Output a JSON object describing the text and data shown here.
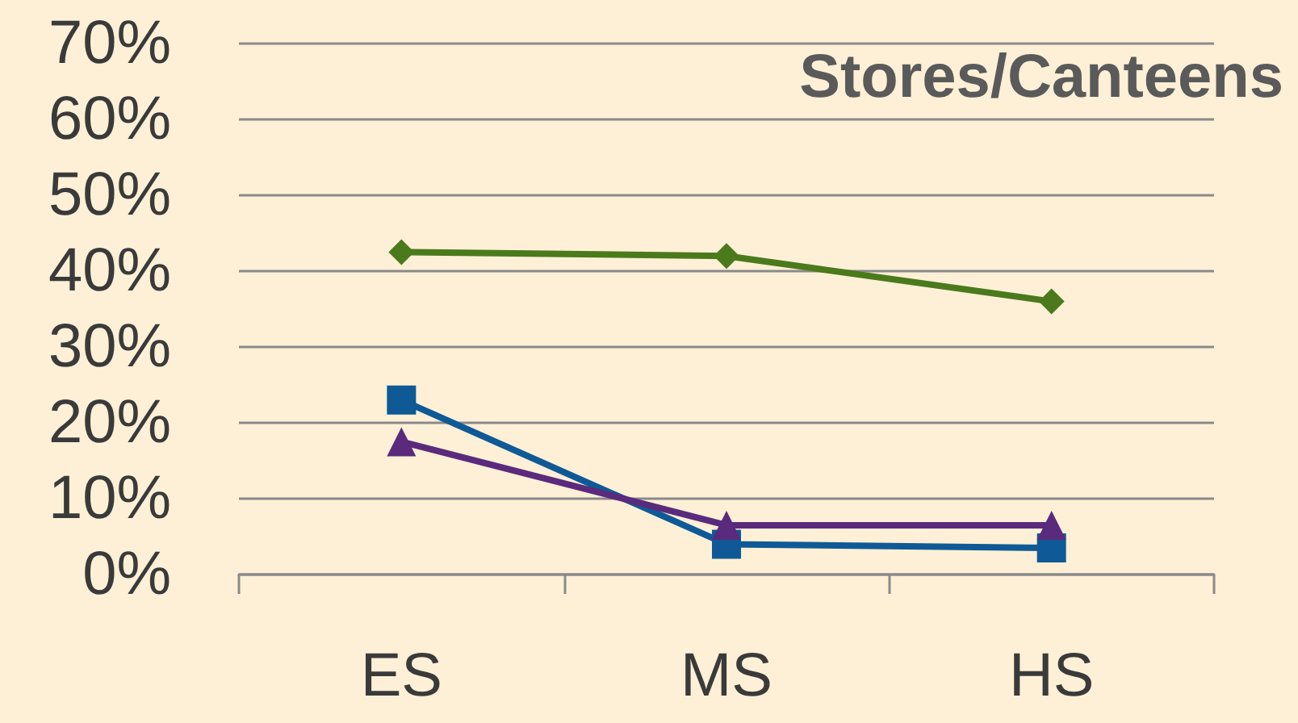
{
  "chart_data": {
    "type": "line",
    "title": "Stores/Canteens",
    "categories": [
      "ES",
      "MS",
      "HS"
    ],
    "series": [
      {
        "color": "#4a7a1c",
        "marker": "diamond",
        "values": [
          42.5,
          42,
          36
        ]
      },
      {
        "color": "#0f5a96",
        "marker": "square",
        "values": [
          23,
          4,
          3.5
        ]
      },
      {
        "color": "#5a2a7c",
        "marker": "triangle",
        "values": [
          17.5,
          6.5,
          6.5
        ]
      }
    ],
    "ylim": [
      0,
      70
    ],
    "yticks": [
      {
        "value": 0,
        "label": "0%"
      },
      {
        "value": 10,
        "label": "10%"
      },
      {
        "value": 20,
        "label": "20%"
      },
      {
        "value": 30,
        "label": "30%"
      },
      {
        "value": 40,
        "label": "40%"
      },
      {
        "value": 50,
        "label": "50%"
      },
      {
        "value": 60,
        "label": "60%"
      },
      {
        "value": 70,
        "label": "70%"
      }
    ],
    "grid": "y",
    "line_style": "solid"
  }
}
